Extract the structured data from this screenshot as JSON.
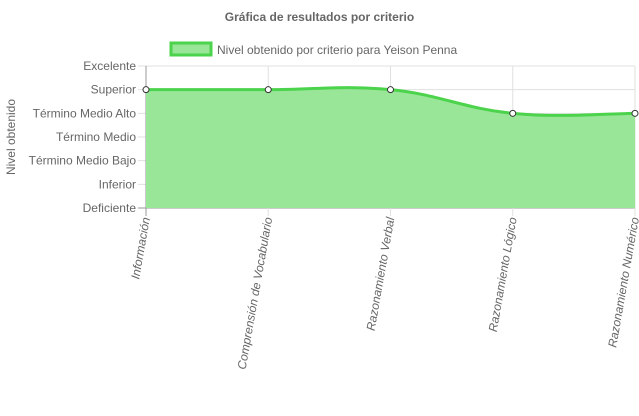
{
  "chart_data": {
    "type": "area",
    "title": "Gráfica de resultados por criterio",
    "ylabel": "Nivel obtenido",
    "xlabel": "",
    "categories": [
      "Información",
      "Comprensión de Vocabulario",
      "Razonamiento Verbal",
      "Razonamiento Lógico",
      "Razonamiento Numérico"
    ],
    "y_levels": [
      "Deficiente",
      "Inferior",
      "Término Medio Bajo",
      "Término Medio",
      "Término Medio Alto",
      "Superior",
      "Excelente"
    ],
    "ylim": [
      0,
      6
    ],
    "series": [
      {
        "name": "Nivel obtenido por criterio para Yeison Penna",
        "values": [
          5,
          5,
          5,
          4,
          4
        ],
        "value_labels": [
          "Superior",
          "Superior",
          "Superior",
          "Término Medio Alto",
          "Término Medio Alto"
        ]
      }
    ],
    "legend": "top-center",
    "grid": true,
    "colors": {
      "line": "#4cd34c",
      "fill": "#99e699",
      "legend_border": "#4cd34c",
      "legend_fill": "#99e699"
    }
  }
}
